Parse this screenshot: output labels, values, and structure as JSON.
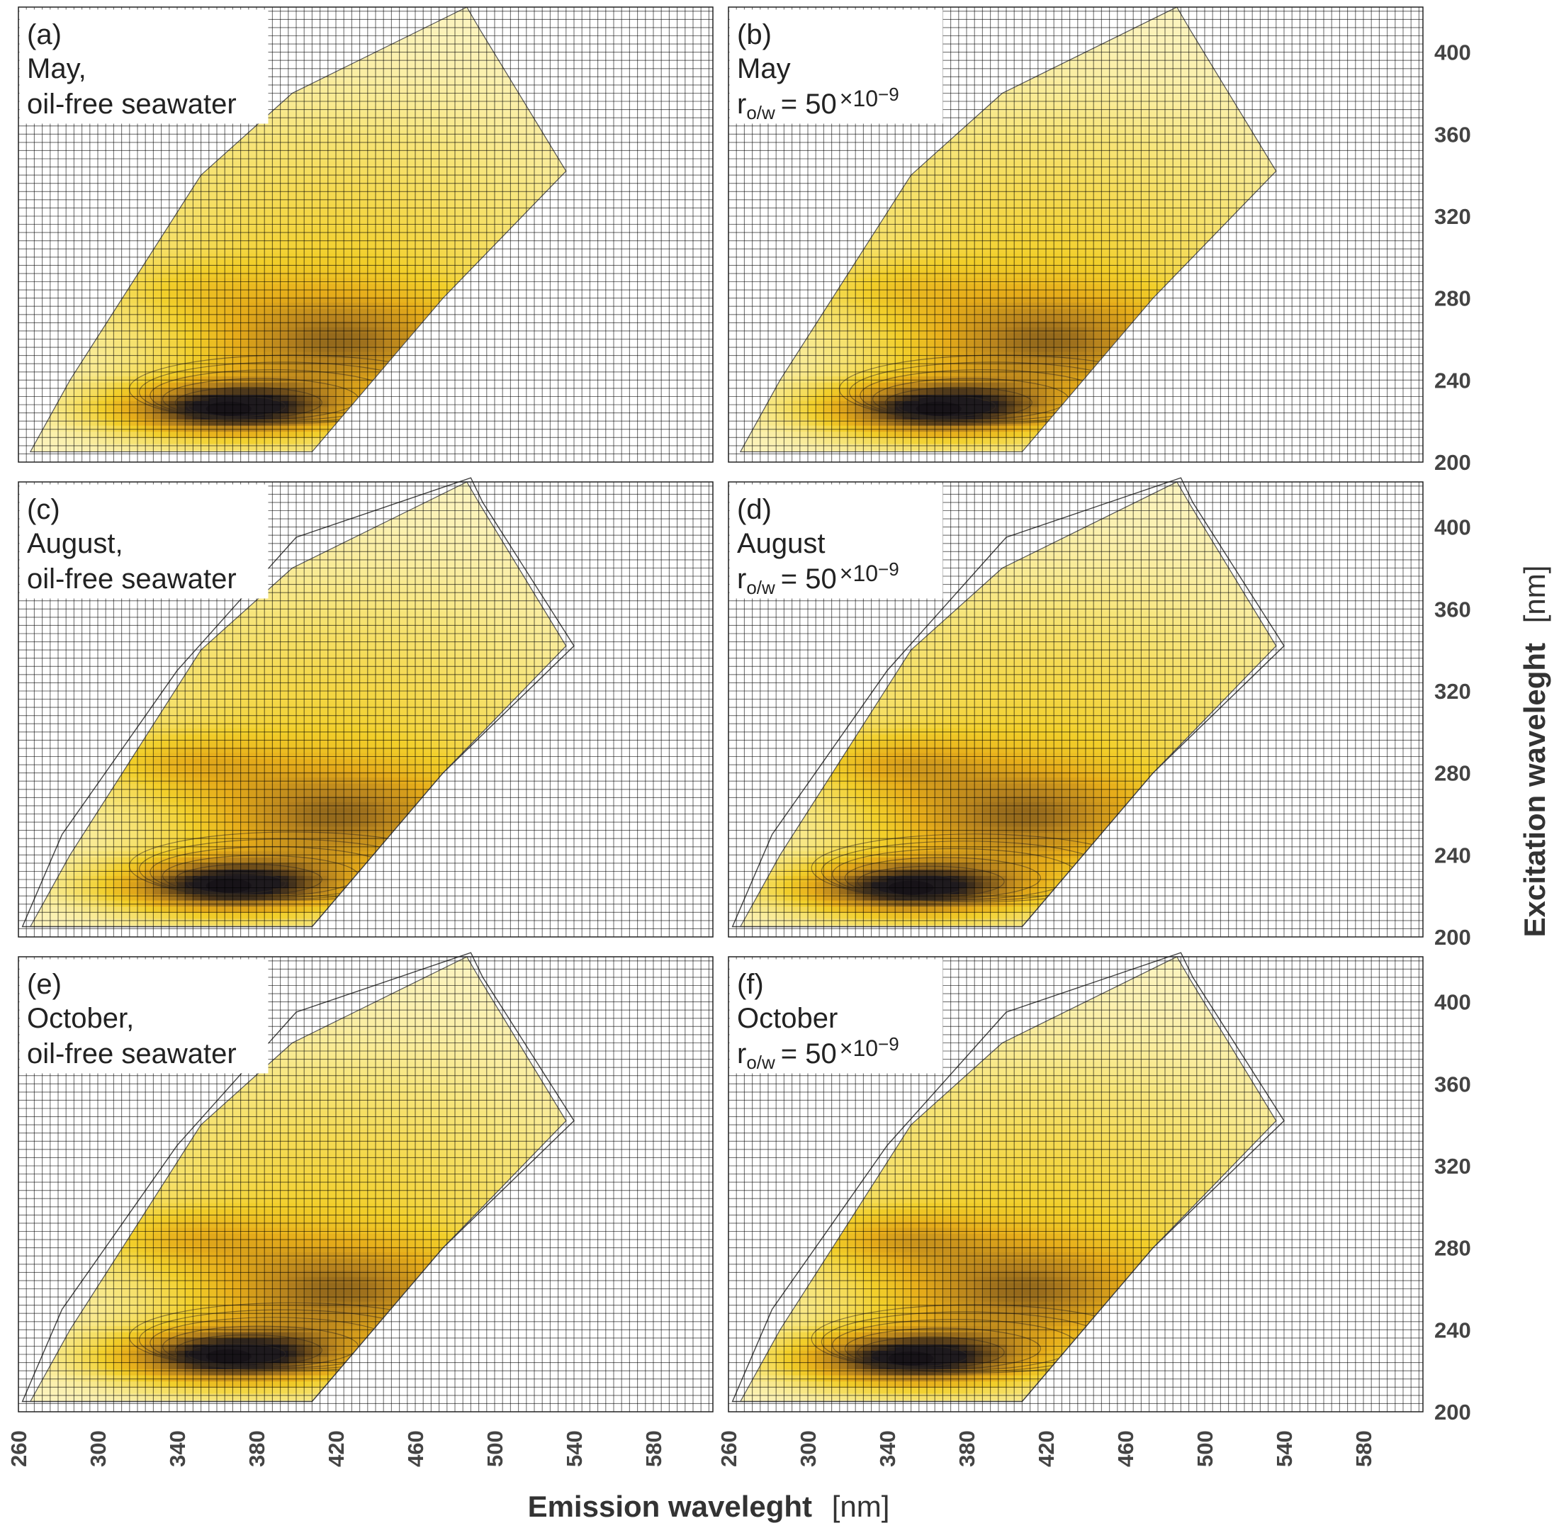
{
  "chart_data": {
    "type": "heatmap",
    "subtype": "excitation-emission contour map",
    "x_axis": {
      "label": "Emission waveleght",
      "unit": "[nm]",
      "range": [
        260,
        610
      ],
      "ticks": [
        260,
        300,
        340,
        380,
        420,
        460,
        500,
        540,
        580
      ]
    },
    "y_axis": {
      "label": "Excitation waveleght",
      "unit": "[nm]",
      "range": [
        200,
        422
      ],
      "ticks": [
        200,
        240,
        280,
        320,
        360,
        400
      ]
    },
    "ratio_text": "r",
    "ratio_sub": "o/w",
    "ratio_value": "= 50",
    "ratio_exp": "×10",
    "ratio_pow": "−9",
    "colormap": [
      "#fdf6c8",
      "#f7e57a",
      "#f2cf2a",
      "#e6ac1a",
      "#b8841e",
      "#6a4a1a",
      "#1e1a1e"
    ],
    "panels": [
      {
        "id": "a",
        "tag": "(a)",
        "line1": "May,",
        "line2": "oil-free seawater",
        "ratio": false,
        "peak_em": 366,
        "peak_ex": 226,
        "second_peak_strength": 0.25,
        "outline_extra": false
      },
      {
        "id": "b",
        "tag": "(b)",
        "line1": "May",
        "line2": "",
        "ratio": true,
        "peak_em": 366,
        "peak_ex": 226,
        "second_peak_strength": 0.3,
        "outline_extra": false
      },
      {
        "id": "c",
        "tag": "(c)",
        "line1": "August,",
        "line2": "oil-free seawater",
        "ratio": false,
        "peak_em": 366,
        "peak_ex": 225,
        "second_peak_strength": 0.5,
        "outline_extra": true
      },
      {
        "id": "d",
        "tag": "(d)",
        "line1": "August",
        "line2": "",
        "ratio": true,
        "peak_em": 352,
        "peak_ex": 224,
        "second_peak_strength": 0.55,
        "outline_extra": true
      },
      {
        "id": "e",
        "tag": "(e)",
        "line1": "October,",
        "line2": "oil-free seawater",
        "ratio": false,
        "peak_em": 366,
        "peak_ex": 227,
        "second_peak_strength": 0.5,
        "outline_extra": true
      },
      {
        "id": "f",
        "tag": "(f)",
        "line1": "October",
        "line2": "",
        "ratio": true,
        "peak_em": 352,
        "peak_ex": 226,
        "second_peak_strength": 0.6,
        "outline_extra": true
      }
    ]
  }
}
